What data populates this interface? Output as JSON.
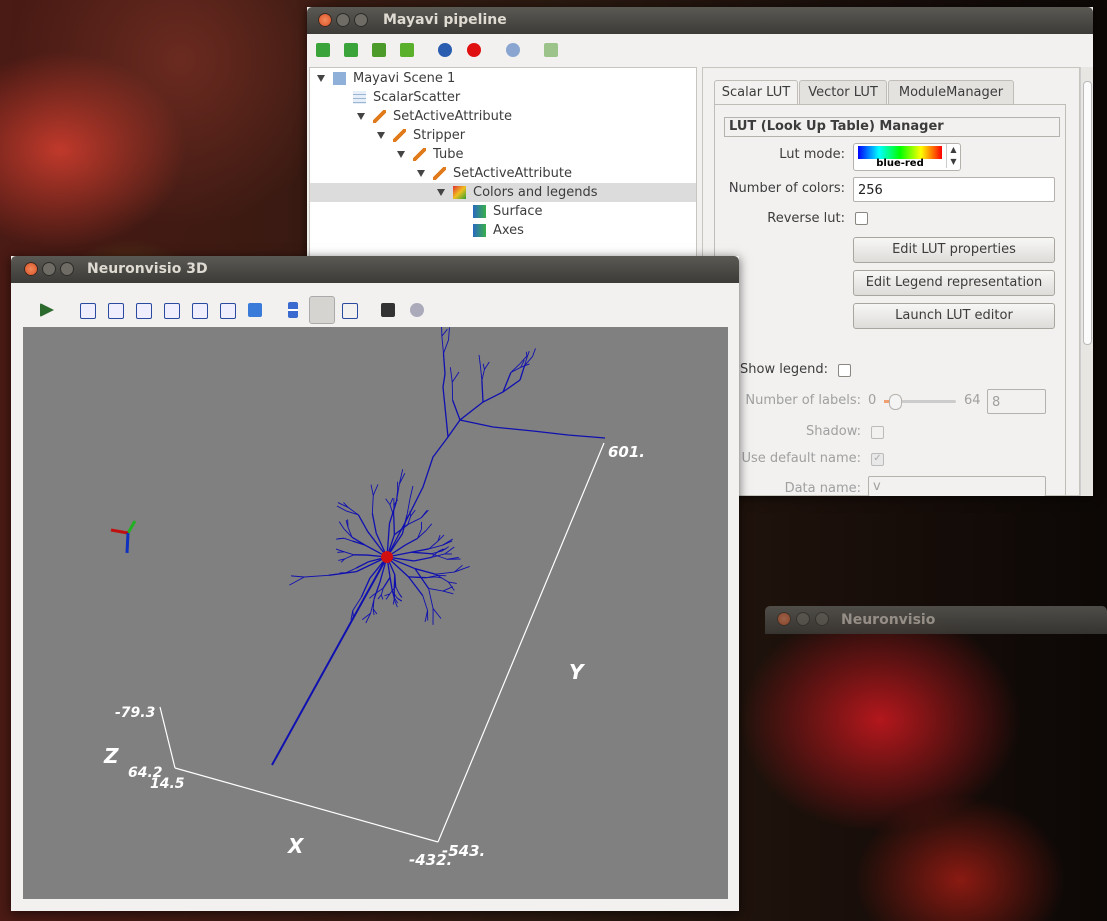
{
  "pipeline_window": {
    "title": "Mayavi pipeline",
    "tree": [
      "Mayavi Scene 1",
      "ScalarScatter",
      "SetActiveAttribute",
      "Stripper",
      "Tube",
      "SetActiveAttribute",
      "Colors and legends",
      "Surface",
      "Axes"
    ],
    "tabs": [
      "Scalar LUT",
      "Vector LUT",
      "ModuleManager"
    ],
    "lut_panel": {
      "heading": "LUT (Look Up Table) Manager",
      "lut_mode_label": "Lut mode:",
      "lut_mode_value": "blue-red",
      "num_colors_label": "Number of colors:",
      "num_colors_value": 256,
      "reverse_label": "Reverse lut:",
      "buttons": [
        "Edit LUT properties",
        "Edit Legend representation",
        "Launch LUT editor"
      ],
      "show_legend_label": "Show legend:",
      "num_labels_label": "Number of labels:",
      "num_labels_min": 0,
      "num_labels_max": 64,
      "num_labels_value": 8,
      "shadow_label": "Shadow:",
      "default_name_label": "Use default name:",
      "data_name_label": "Data name:",
      "data_name_value": "v"
    }
  },
  "viewer_window": {
    "title": "Neuronvisio 3D",
    "axis_labels": {
      "y_max": "601.",
      "y_title": "Y",
      "z_min": "-79.3",
      "z_title": "Z",
      "z_max": "64.2",
      "x_min": "14.5",
      "x_title": "X",
      "x_max": "-432.",
      "y_min": "-543."
    }
  },
  "background_window": {
    "title": "Neuronvisio"
  }
}
